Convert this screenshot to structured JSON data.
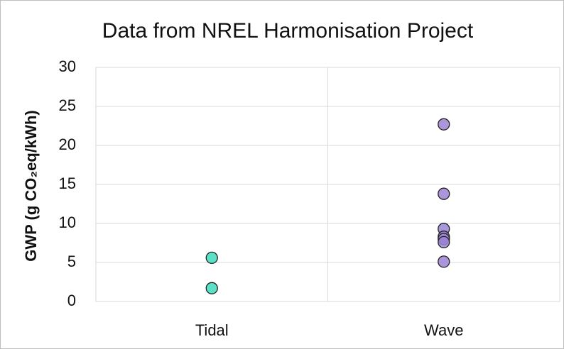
{
  "chart_data": {
    "type": "scatter",
    "title": "Data from NREL Harmonisation Project",
    "ylabel": "GWP (g CO₂eq/kWh)",
    "categories": [
      "Tidal",
      "Wave"
    ],
    "series": [
      {
        "color": "#3fdcbf",
        "values": [
          5.6,
          1.7
        ]
      },
      {
        "color": "#9b84d4",
        "values": [
          22.7,
          13.8,
          9.3,
          8.3,
          8.0,
          7.6,
          5.1
        ]
      }
    ],
    "ylim": [
      0,
      30
    ],
    "yticks": [
      0,
      5,
      10,
      15,
      20,
      25,
      30
    ],
    "grid": true
  }
}
